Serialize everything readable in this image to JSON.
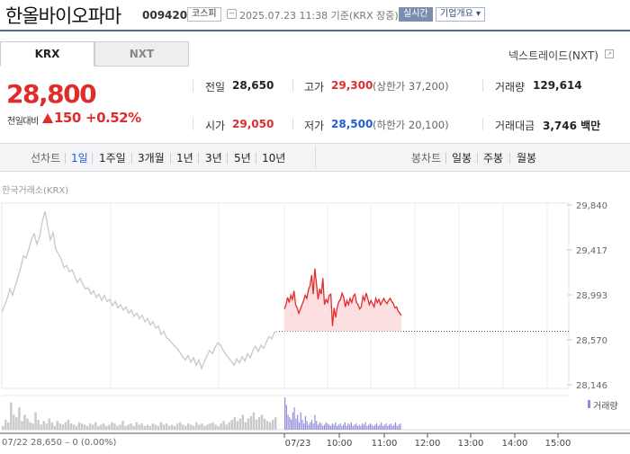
{
  "header": {
    "stock_name": "한올바이오파마",
    "stock_code": "009420",
    "market": "코스피",
    "datetime": "2025.07.23 11:38 기준(KRX 장중)",
    "realtime": "실시간",
    "overview": "기업개요 ▾"
  },
  "tabs": {
    "krx": "KRX",
    "nxt": "NXT"
  },
  "nextrade_link": "넥스트레이드(NXT)",
  "price": {
    "current": "28,800",
    "change_label": "전일대비",
    "change_value": "150",
    "change_pct": "+0.52%"
  },
  "stats": {
    "prev_label": "전일",
    "prev": "28,650",
    "high_label": "고가",
    "high": "29,300",
    "upper_limit": "(상한가 37,200)",
    "volume_label": "거래량",
    "volume": "129,614",
    "open_label": "시가",
    "open": "29,050",
    "low_label": "저가",
    "low": "28,500",
    "lower_limit": "(하한가 20,100)",
    "amount_label": "거래대금",
    "amount": "3,746 백만"
  },
  "period_bar": {
    "line_label": "선차트",
    "line_items": [
      "1일",
      "1주일",
      "3개월",
      "1년",
      "3년",
      "5년",
      "10년"
    ],
    "candle_label": "봉차트",
    "candle_items": [
      "일봉",
      "주봉",
      "월봉"
    ]
  },
  "colors": {
    "up": "#e12c2c",
    "down": "#1f5fd6",
    "prev_line": "#c8c8c8",
    "volume_today": "#8f8bd8"
  },
  "chart_data": {
    "type": "line",
    "title": "한국거래소(KRX)",
    "y_ticks": [
      "29,840",
      "29,417",
      "28,993",
      "28,570",
      "28,146"
    ],
    "ylim": [
      28146,
      29840
    ],
    "x_ticks": [
      "07/23",
      "10:00",
      "11:00",
      "12:00",
      "13:00",
      "14:00",
      "15:00"
    ],
    "reference": 28650,
    "volume_label": "거래량",
    "footer_text": "07/22  28,650 – 0 (0.00%)",
    "series": [
      {
        "values": [
          28830,
          28890,
          28960,
          29050,
          28990,
          29080,
          29160,
          29250,
          29360,
          29340,
          29420,
          29520,
          29570,
          29470,
          29540,
          29680,
          29780,
          29640,
          29510,
          29580,
          29420,
          29380,
          29330,
          29250,
          29270,
          29210,
          29230,
          29170,
          29110,
          29150,
          29090,
          29050,
          29060,
          29000,
          29030,
          28970,
          29000,
          28940,
          28990,
          28930,
          28950,
          28890,
          28930,
          28870,
          28900,
          28850,
          28880,
          28820,
          28850,
          28790,
          28820,
          28770,
          28800,
          28740,
          28770,
          28710,
          28740,
          28680,
          28700,
          28620,
          28650,
          28590,
          28570,
          28540,
          28510,
          28490,
          28450,
          28410,
          28380,
          28420,
          28360,
          28400,
          28330,
          28380,
          28300,
          28360,
          28420,
          28470,
          28440,
          28500,
          28540,
          28520,
          28470,
          28430,
          28400,
          28370,
          28330,
          28390,
          28350,
          28410,
          28370,
          28440,
          28400,
          28470,
          28510,
          28460,
          28520,
          28490,
          28550,
          28600,
          28580,
          28640,
          28650
        ]
      },
      {
        "values": [
          28860,
          28900,
          28970,
          28920,
          28990,
          28950,
          29030,
          28900,
          28870,
          28820,
          28860,
          28900,
          28940,
          28990,
          28960,
          29040,
          29080,
          29180,
          29000,
          29240,
          29100,
          28950,
          29050,
          29000,
          29150,
          28900,
          28950,
          28920,
          28990,
          29000,
          28700,
          28870,
          28780,
          28880,
          28930,
          28950,
          29010,
          28970,
          28880,
          28940,
          28900,
          28960,
          28920,
          28980,
          29000,
          28920,
          28900,
          28860,
          28880,
          28980,
          28940,
          29010,
          28960,
          28900,
          28940,
          28910,
          28880,
          28960,
          28920,
          28950,
          28900,
          28930,
          28960,
          28930,
          28910,
          28940,
          28960,
          28930,
          28910,
          28870,
          28880,
          28840,
          28820,
          28800
        ]
      }
    ],
    "volume": {
      "prev_day": [
        3,
        8,
        6,
        22,
        12,
        10,
        18,
        7,
        12,
        9,
        6,
        5,
        14,
        8,
        4,
        7,
        5,
        9,
        6,
        3,
        7,
        5,
        4,
        6,
        8,
        5,
        4,
        3,
        6,
        5,
        4,
        3,
        5,
        4,
        6,
        3,
        4,
        5,
        3,
        4,
        6,
        5,
        3,
        4,
        7,
        3,
        4,
        5,
        3,
        6,
        4,
        5,
        3,
        4,
        3,
        5,
        4,
        3,
        6,
        4,
        5,
        3,
        4,
        3,
        5,
        6,
        4,
        3,
        5,
        4,
        3,
        6,
        4,
        5,
        3,
        4,
        5,
        6,
        4,
        3,
        5,
        7,
        4,
        6,
        8,
        10,
        7,
        9,
        12,
        6,
        9,
        11,
        14,
        8,
        10,
        12,
        9,
        7,
        6,
        8,
        10
      ],
      "today": [
        26,
        20,
        12,
        10,
        8,
        14,
        18,
        9,
        12,
        6,
        14,
        8,
        5,
        11,
        7,
        4,
        6,
        8,
        5,
        12,
        7,
        4,
        6,
        5,
        3,
        4,
        6,
        5,
        4,
        3,
        5,
        4,
        6,
        3,
        4,
        5,
        3,
        4,
        6,
        3,
        5,
        4,
        6,
        3,
        4,
        5,
        3,
        4,
        3,
        5,
        4,
        6,
        3,
        4,
        5,
        4,
        3,
        4,
        5,
        3,
        4,
        6,
        3,
        4,
        5,
        3,
        4,
        5,
        3,
        4,
        6,
        3,
        4,
        5
      ]
    }
  }
}
